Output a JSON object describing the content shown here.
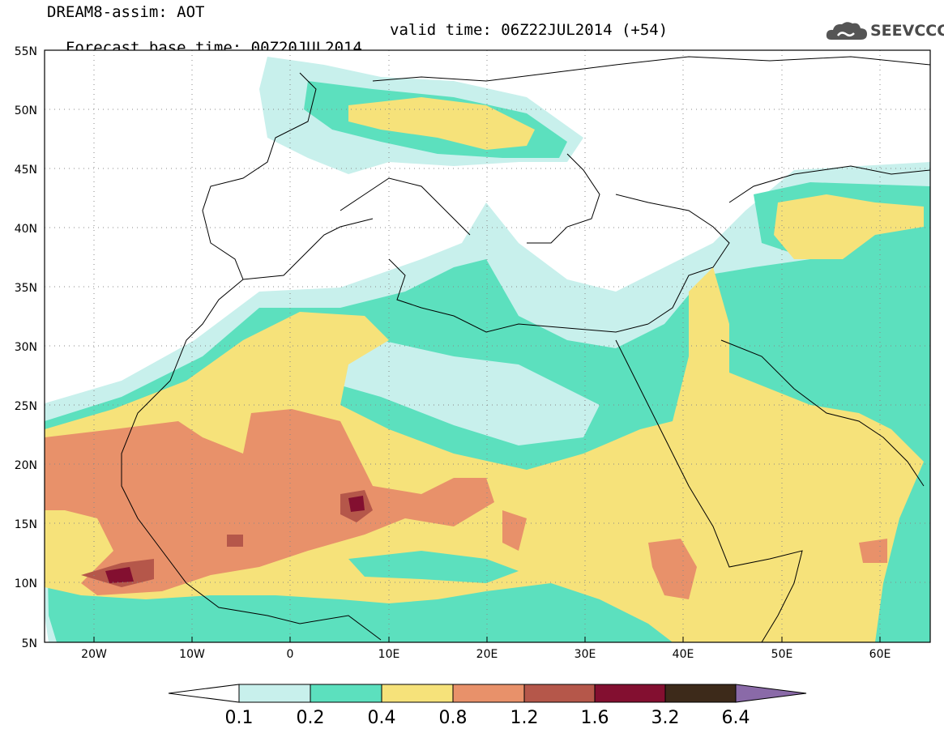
{
  "header": {
    "title": "DREAM8-assim: AOT",
    "base_time": "Forecast base time: 00Z20JUL2014",
    "valid_time": "valid time: 06Z22JUL2014 (+54)",
    "logo_text": "SEEVCCC",
    "logo_icon": "cloud-icon"
  },
  "map": {
    "lat_labels": [
      "55N",
      "50N",
      "45N",
      "40N",
      "35N",
      "30N",
      "25N",
      "20N",
      "15N",
      "10N",
      "5N"
    ],
    "lon_labels": [
      "20W",
      "10W",
      "0",
      "10E",
      "20E",
      "30E",
      "40E",
      "50E",
      "60E"
    ],
    "lat_range": [
      5,
      55
    ],
    "lon_range": [
      -25,
      65
    ],
    "grid": "dotted"
  },
  "colorbar": {
    "labels": [
      "0.1",
      "0.2",
      "0.4",
      "0.8",
      "1.2",
      "1.6",
      "3.2",
      "6.4"
    ],
    "colors": [
      "#c8f0ec",
      "#5ce0be",
      "#f6e27a",
      "#e8916a",
      "#b5574a",
      "#830f30",
      "#3d2a1a",
      "#8a6aa8"
    ]
  }
}
